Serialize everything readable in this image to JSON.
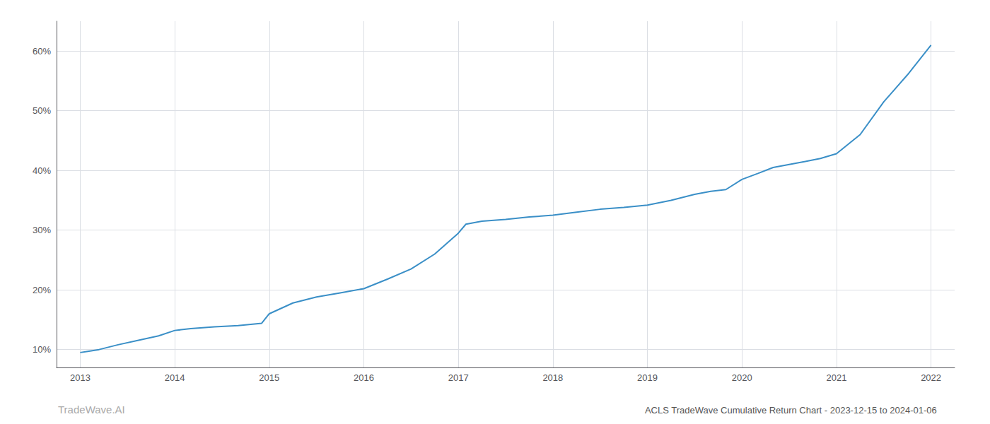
{
  "chart_data": {
    "type": "line",
    "title": "ACLS TradeWave Cumulative Return Chart - 2023-12-15 to 2024-01-06",
    "annotations": [
      "TradeWave.AI"
    ],
    "x": [
      2013.0,
      2013.08,
      2013.2,
      2013.4,
      2013.6,
      2013.83,
      2014.0,
      2014.17,
      2014.42,
      2014.67,
      2014.92,
      2015.0,
      2015.25,
      2015.5,
      2015.75,
      2016.0,
      2016.25,
      2016.5,
      2016.75,
      2017.0,
      2017.08,
      2017.25,
      2017.5,
      2017.75,
      2018.0,
      2018.25,
      2018.5,
      2018.75,
      2019.0,
      2019.25,
      2019.5,
      2019.67,
      2019.83,
      2020.0,
      2020.17,
      2020.33,
      2020.5,
      2020.67,
      2020.83,
      2021.0,
      2021.25,
      2021.5,
      2021.75,
      2022.0
    ],
    "values": [
      9.5,
      9.7,
      10.0,
      10.8,
      11.5,
      12.3,
      13.2,
      13.5,
      13.8,
      14.0,
      14.4,
      16.0,
      17.8,
      18.8,
      19.5,
      20.2,
      21.8,
      23.5,
      26.0,
      29.5,
      31.0,
      31.5,
      31.8,
      32.2,
      32.5,
      33.0,
      33.5,
      33.8,
      34.2,
      35.0,
      36.0,
      36.5,
      36.8,
      38.5,
      39.5,
      40.5,
      41.0,
      41.5,
      42.0,
      42.8,
      46.0,
      51.5,
      56.0,
      61.0
    ],
    "color": "#3a8fc7",
    "xlim": [
      2012.75,
      2022.25
    ],
    "xticks": [
      2013,
      2014,
      2015,
      2016,
      2017,
      2018,
      2019,
      2020,
      2021,
      2022
    ],
    "ylim": [
      7,
      65
    ],
    "yticks": [
      {
        "value": 10,
        "label": "10%"
      },
      {
        "value": 20,
        "label": "20%"
      },
      {
        "value": 30,
        "label": "30%"
      },
      {
        "value": 40,
        "label": "40%"
      },
      {
        "value": 50,
        "label": "50%"
      },
      {
        "value": 60,
        "label": "60%"
      }
    ],
    "grid": true
  }
}
